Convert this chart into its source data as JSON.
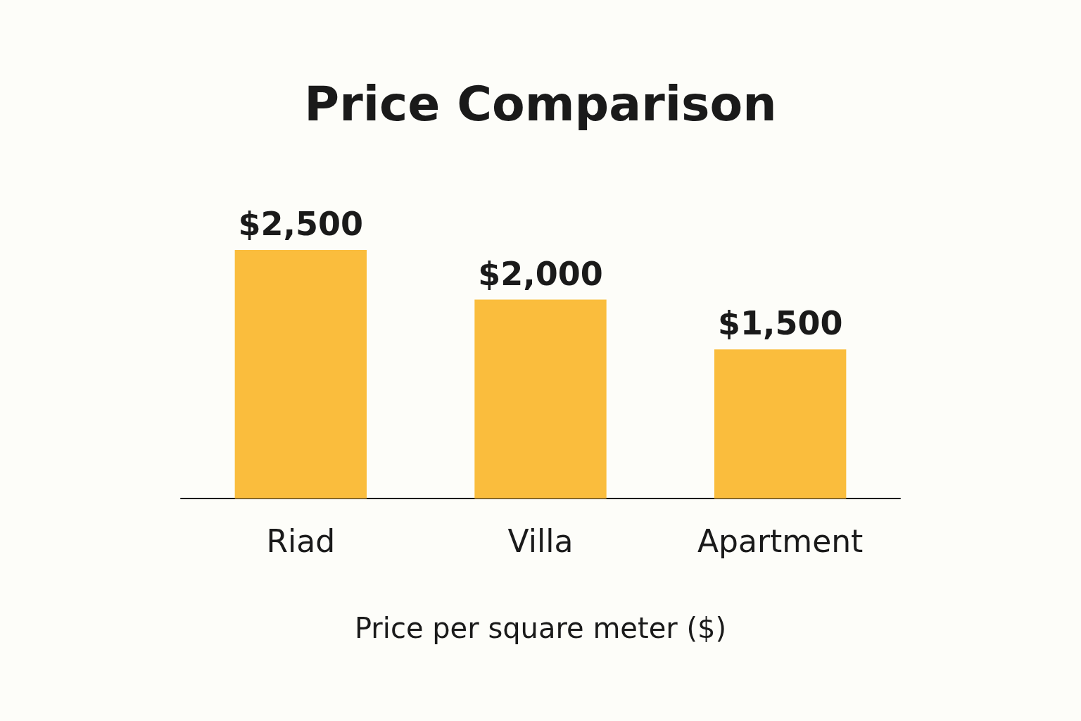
{
  "chart_data": {
    "type": "bar",
    "title": "Price Comparison",
    "xlabel": "Price per square meter ($)",
    "categories": [
      "Riad",
      "Villa",
      "Apartment"
    ],
    "values": [
      2500,
      2000,
      1500
    ],
    "value_labels": [
      "$2,500",
      "$2,000",
      "$1,500"
    ],
    "color": "#fabd3d"
  }
}
